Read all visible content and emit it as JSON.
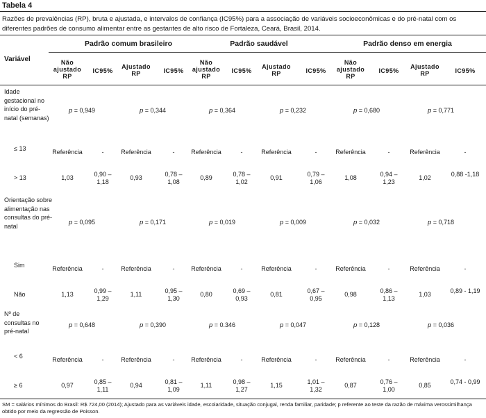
{
  "table_label": "Tabela 4",
  "caption": "Razões de prevalências (RP), bruta e ajustada, e intervalos de confiança (IC95%) para a associação de variáveis socioeconômicas e do pré-natal com os diferentes padrões de consumo alimentar entre as gestantes de alto risco de Fortaleza, Ceará, Brasil, 2014.",
  "header": {
    "variable": "Variável",
    "groups": [
      "Padrão comum brasileiro",
      "Padrão saudável",
      "Padrão denso em energia"
    ],
    "sub": [
      "Não ajustado RP",
      "IC95%",
      "Ajustado RP",
      "IC95%"
    ],
    "sub_lines": {
      "unadj": [
        "Não",
        "ajustado",
        "RP"
      ],
      "ci": "IC95%",
      "adj": [
        "Ajustado",
        "RP"
      ]
    }
  },
  "rows": {
    "var1": {
      "label": "Idade gestacional no início do pré-natal (semanas)",
      "pvals": [
        "p = 0,949",
        "p = 0,344",
        "p = 0,364",
        "p = 0,232",
        "p = 0,680",
        "p = 0,771"
      ]
    },
    "r1": {
      "label": "≤ 13",
      "values": [
        "Referência",
        "-",
        "Referência",
        "-",
        "Referência",
        "-",
        "Referência",
        "-",
        "Referência",
        "-",
        "Referência",
        "-"
      ]
    },
    "r2": {
      "label": "> 13",
      "values": [
        "1,03",
        "0,90 – 1,18",
        "0,93",
        "0,78 – 1,08",
        "0,89",
        "0,78 – 1,02",
        "0,91",
        "0,79 – 1,06",
        "1,08",
        "0,94 – 1,23",
        "1,02",
        "0,88 -1,18"
      ]
    },
    "var2": {
      "label": "Orientação sobre alimentação nas consultas do pré-natal",
      "pvals": [
        "p = 0,095",
        "p = 0,171",
        "p = 0,019",
        "p = 0,009",
        "p = 0,032",
        "p = 0,718"
      ]
    },
    "r3": {
      "label": "Sim",
      "values": [
        "Referência",
        "-",
        "Referência",
        "-",
        "Referência",
        "-",
        "Referência",
        "-",
        "Referência",
        "-",
        "Referência",
        "-"
      ]
    },
    "r4": {
      "label": "Não",
      "values": [
        "1,13",
        "0,99 – 1,29",
        "1,11",
        "0,95 – 1,30",
        "0,80",
        "0,69 – 0,93",
        "0,81",
        "0,67 – 0,95",
        "0,98",
        "0,86 – 1,13",
        "1,03",
        "0,89 - 1,19"
      ]
    },
    "var3": {
      "label": "Nº de consultas no pré-natal",
      "pvals": [
        "p = 0,648",
        "p = 0,390",
        "p = 0.346",
        "p = 0,047",
        "p = 0,128",
        "p = 0,036"
      ]
    },
    "r5": {
      "label": "< 6",
      "values": [
        "Referência",
        "-",
        "Referência",
        "-",
        "Referência",
        "-",
        "Referência",
        "-",
        "Referência",
        "-",
        "Referência",
        "-"
      ]
    },
    "r6": {
      "label": "≥ 6",
      "values": [
        "0,97",
        "0,85 – 1,11",
        "0,94",
        "0,81 – 1,09",
        "1,11",
        "0,98 – 1,27",
        "1,15",
        "1,01 – 1,32",
        "0,87",
        "0,76 – 1,00",
        "0,85",
        "0,74 - 0,99"
      ]
    }
  },
  "footnote": "SM = salários mínimos do Brasil: R$ 724,00 (2014); Ajustado para as variáveis idade, escolaridade, situação conjugal, renda familiar, paridade; p referente ao teste da razão de máxima verossimilhança obtido por meio da regressão de Poisson."
}
